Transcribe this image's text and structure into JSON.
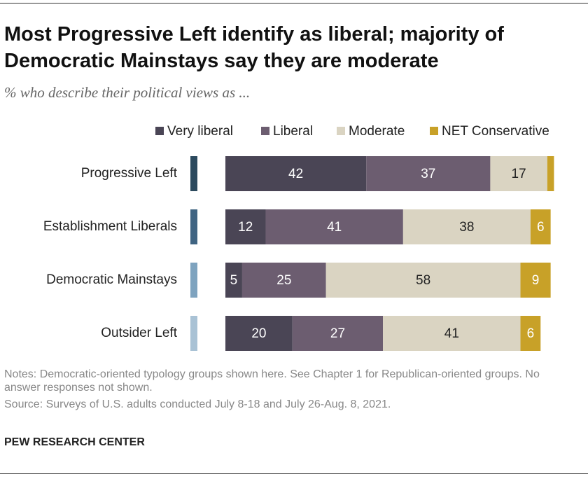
{
  "chart_data": {
    "type": "stacked-bar-horizontal",
    "title": "Most Progressive Left identify as liberal; majority of Democratic Mainstays say they are moderate",
    "subtitle": "% who describe their political views as ...",
    "categories": [
      "Progressive Left",
      "Establishment Liberals",
      "Democratic Mainstays",
      "Outsider Left"
    ],
    "category_colors": [
      "#2c4a5e",
      "#3f6482",
      "#7ea3bf",
      "#a9c2d5"
    ],
    "series": [
      {
        "name": "Very liberal",
        "color": "#4a4555",
        "label_color": "#ffffff",
        "values": [
          42,
          12,
          5,
          20
        ]
      },
      {
        "name": "Liberal",
        "color": "#6c5d70",
        "label_color": "#ffffff",
        "values": [
          37,
          41,
          25,
          27
        ]
      },
      {
        "name": "Moderate",
        "color": "#dad4c2",
        "label_color": "#222222",
        "values": [
          17,
          38,
          58,
          41
        ]
      },
      {
        "name": "NET Conservative",
        "color": "#c8a128",
        "label_color": "#ffffff",
        "values": [
          2,
          6,
          9,
          6
        ],
        "value_labels": [
          null,
          "6",
          "9",
          "6"
        ]
      }
    ],
    "notes": "Notes: Democratic-oriented typology groups shown here. See Chapter 1 for Republican-oriented groups. No answer responses not shown.",
    "source": "Source: Surveys of U.S. adults conducted July 8-18 and July 26-Aug. 8, 2021.",
    "brand": "PEW RESEARCH CENTER"
  }
}
